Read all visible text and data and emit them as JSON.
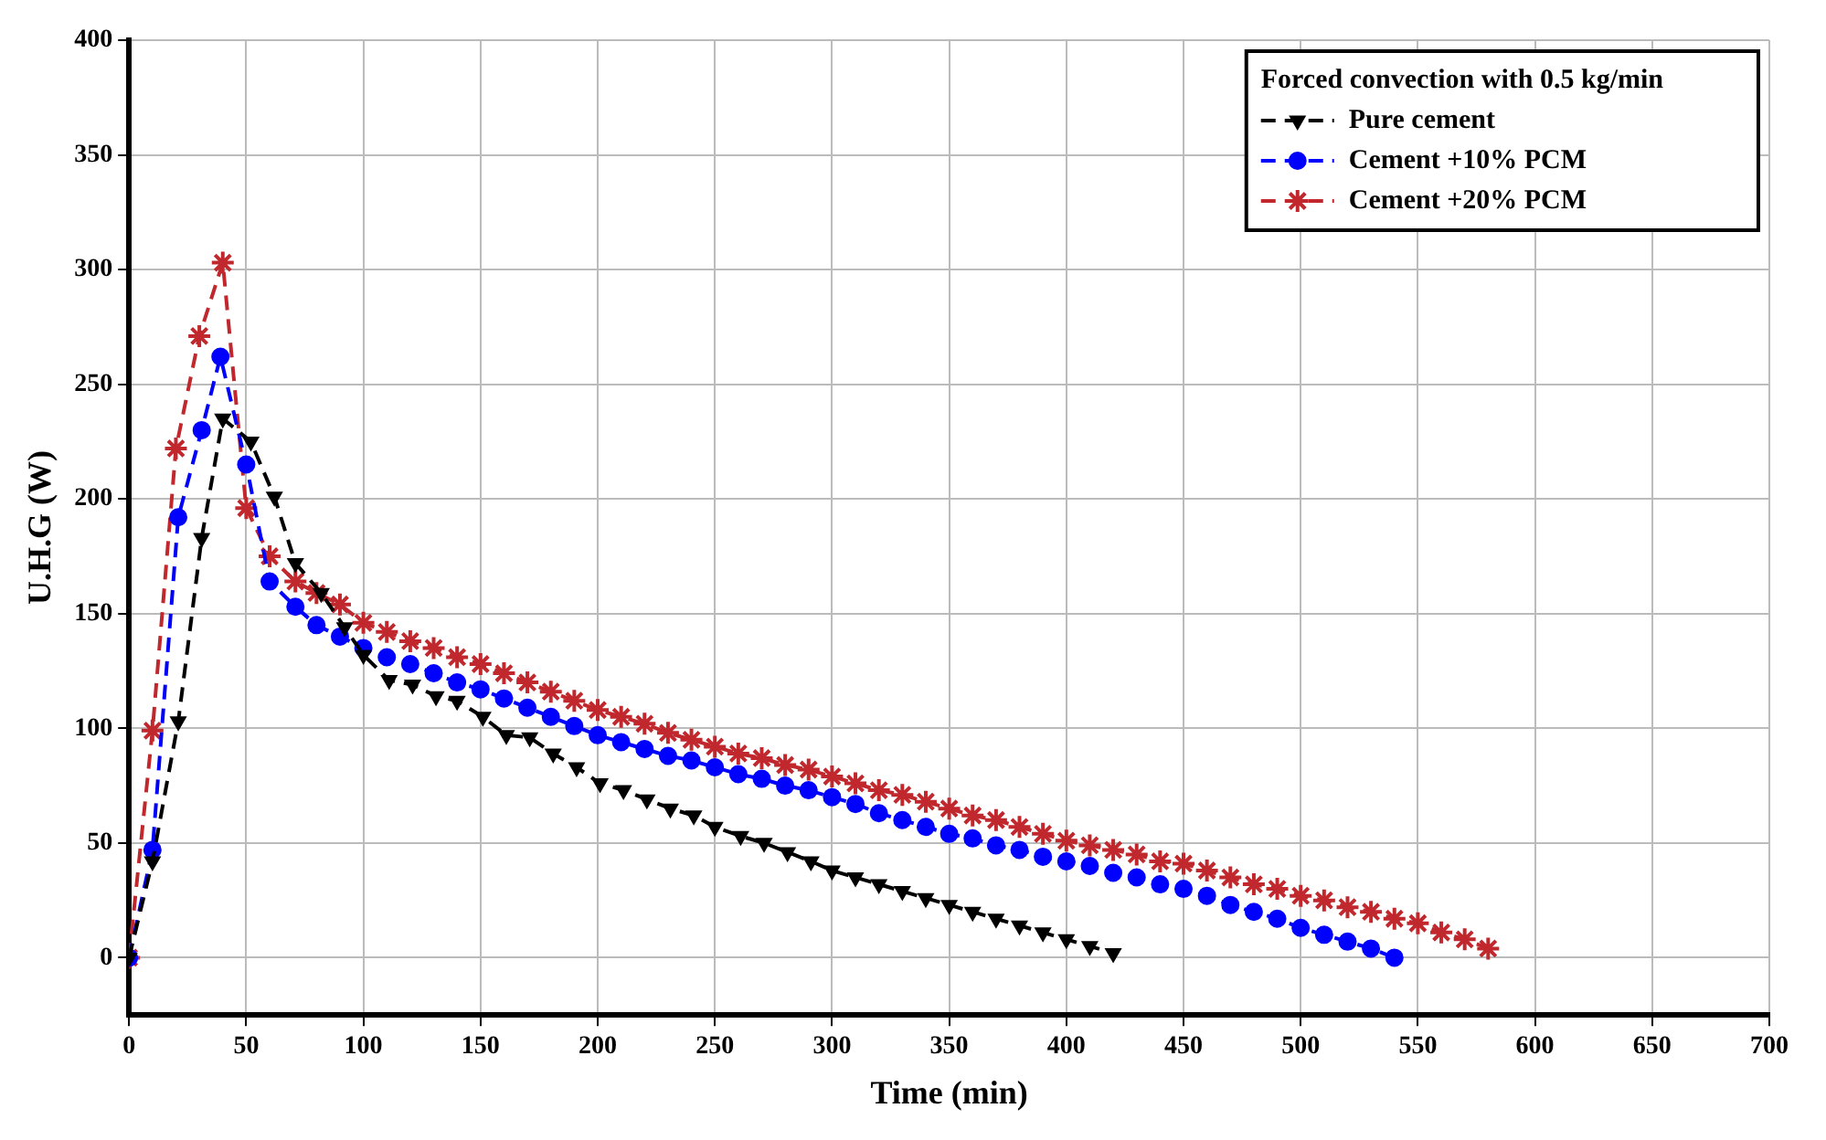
{
  "chart_data": {
    "type": "line",
    "xlabel": "Time (min)",
    "ylabel": "U.H.G (W)",
    "legend_title": "Forced convection with 0.5 kg/min",
    "legend": "top right",
    "grid": true,
    "line_style": "dashed",
    "xlim": [
      0,
      700
    ],
    "xticks": [
      0,
      50,
      100,
      150,
      200,
      250,
      300,
      350,
      400,
      450,
      500,
      550,
      600,
      650,
      700
    ],
    "ylim": [
      -25,
      400
    ],
    "yticks": [
      0,
      50,
      100,
      150,
      200,
      250,
      300,
      350,
      400
    ],
    "series": [
      {
        "name": "Pure cement",
        "color": "#000000",
        "marker": "triangle",
        "x": [
          0,
          10,
          21,
          31,
          40,
          52,
          62,
          71,
          82,
          92,
          100,
          111,
          121,
          131,
          140,
          151,
          161,
          171,
          181,
          191,
          201,
          211,
          221,
          231,
          241,
          250,
          261,
          271,
          281,
          291,
          300,
          310,
          320,
          330,
          340,
          350,
          360,
          370,
          380,
          390,
          400,
          410,
          420
        ],
        "values": [
          0,
          42,
          103,
          183,
          235,
          225,
          201,
          172,
          159,
          144,
          132,
          121,
          119,
          114,
          112,
          105,
          97,
          96,
          89,
          83,
          76,
          73,
          69,
          65,
          62,
          57,
          53,
          50,
          46,
          42,
          38,
          35,
          32,
          29,
          26,
          23,
          20,
          17,
          14,
          11,
          8,
          5,
          2
        ]
      },
      {
        "name": "Cement +10% PCM",
        "color": "#0000ff",
        "marker": "circle",
        "x": [
          0,
          10,
          21,
          31,
          39,
          50,
          60,
          71,
          80,
          90,
          100,
          110,
          120,
          130,
          140,
          150,
          160,
          170,
          180,
          190,
          200,
          210,
          220,
          230,
          240,
          250,
          260,
          270,
          280,
          290,
          300,
          310,
          320,
          330,
          340,
          350,
          360,
          370,
          380,
          390,
          400,
          410,
          420,
          430,
          440,
          450,
          460,
          470,
          480,
          490,
          500,
          510,
          520,
          530,
          540
        ],
        "values": [
          0,
          47,
          192,
          230,
          262,
          215,
          164,
          153,
          145,
          140,
          135,
          131,
          128,
          124,
          120,
          117,
          113,
          109,
          105,
          101,
          97,
          94,
          91,
          88,
          86,
          83,
          80,
          78,
          75,
          73,
          70,
          67,
          63,
          60,
          57,
          54,
          52,
          49,
          47,
          44,
          42,
          40,
          37,
          35,
          32,
          30,
          27,
          23,
          20,
          17,
          13,
          10,
          7,
          4,
          0
        ]
      },
      {
        "name": "Cement +20% PCM",
        "color": "#c0282d",
        "marker": "cross",
        "x": [
          0,
          10,
          20,
          30,
          40,
          50,
          60,
          71,
          80,
          90,
          100,
          110,
          120,
          130,
          140,
          150,
          160,
          170,
          180,
          190,
          200,
          210,
          220,
          230,
          240,
          250,
          260,
          270,
          280,
          290,
          300,
          310,
          320,
          330,
          340,
          350,
          360,
          370,
          380,
          390,
          400,
          410,
          420,
          430,
          440,
          450,
          460,
          470,
          480,
          490,
          500,
          510,
          520,
          530,
          540,
          550,
          560,
          570,
          580
        ],
        "values": [
          0,
          99,
          222,
          271,
          303,
          196,
          175,
          164,
          159,
          154,
          146,
          142,
          138,
          135,
          131,
          128,
          124,
          120,
          116,
          112,
          108,
          105,
          102,
          98,
          95,
          92,
          89,
          87,
          84,
          82,
          79,
          76,
          73,
          71,
          68,
          65,
          62,
          60,
          57,
          54,
          51,
          49,
          47,
          45,
          42,
          41,
          38,
          35,
          32,
          30,
          27,
          25,
          22,
          20,
          17,
          15,
          11,
          8,
          4
        ]
      }
    ]
  }
}
